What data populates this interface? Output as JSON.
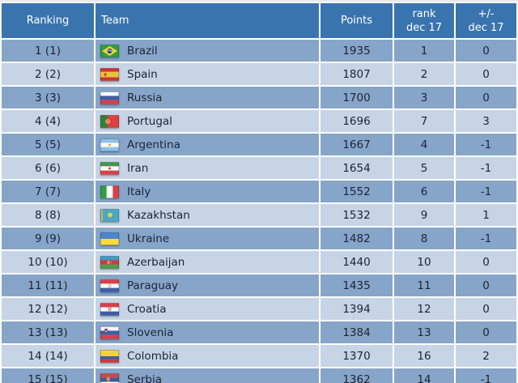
{
  "colors": {
    "header_bg": "#3a74ae",
    "row_dark": "#87a5c9",
    "row_light": "#c6d4e5",
    "header_text": "#ffffff",
    "body_text": "#1b2435",
    "grid": "#ffffff"
  },
  "table": {
    "columns": [
      {
        "key": "ranking",
        "lines": [
          "Ranking"
        ]
      },
      {
        "key": "team",
        "lines": [
          "Team"
        ]
      },
      {
        "key": "points",
        "lines": [
          "Points"
        ]
      },
      {
        "key": "rank_dec17",
        "lines": [
          "rank",
          "dec 17"
        ]
      },
      {
        "key": "change_dec17",
        "lines": [
          "+/-",
          "dec 17"
        ]
      }
    ],
    "rows": [
      {
        "ranking": "1 (1)",
        "team": "Brazil",
        "flag": "brazil",
        "points": "1935",
        "rank_dec17": "1",
        "change_dec17": "0"
      },
      {
        "ranking": "2 (2)",
        "team": "Spain",
        "flag": "spain",
        "points": "1807",
        "rank_dec17": "2",
        "change_dec17": "0"
      },
      {
        "ranking": "3 (3)",
        "team": "Russia",
        "flag": "russia",
        "points": "1700",
        "rank_dec17": "3",
        "change_dec17": "0"
      },
      {
        "ranking": "4 (4)",
        "team": "Portugal",
        "flag": "portugal",
        "points": "1696",
        "rank_dec17": "7",
        "change_dec17": "3"
      },
      {
        "ranking": "5 (5)",
        "team": "Argentina",
        "flag": "argentina",
        "points": "1667",
        "rank_dec17": "4",
        "change_dec17": "-1"
      },
      {
        "ranking": "6 (6)",
        "team": "Iran",
        "flag": "iran",
        "points": "1654",
        "rank_dec17": "5",
        "change_dec17": "-1"
      },
      {
        "ranking": "7 (7)",
        "team": "Italy",
        "flag": "italy",
        "points": "1552",
        "rank_dec17": "6",
        "change_dec17": "-1"
      },
      {
        "ranking": "8 (8)",
        "team": "Kazakhstan",
        "flag": "kazakhstan",
        "points": "1532",
        "rank_dec17": "9",
        "change_dec17": "1"
      },
      {
        "ranking": "9 (9)",
        "team": "Ukraine",
        "flag": "ukraine",
        "points": "1482",
        "rank_dec17": "8",
        "change_dec17": "-1"
      },
      {
        "ranking": "10 (10)",
        "team": "Azerbaijan",
        "flag": "azerbaijan",
        "points": "1440",
        "rank_dec17": "10",
        "change_dec17": "0"
      },
      {
        "ranking": "11 (11)",
        "team": "Paraguay",
        "flag": "paraguay",
        "points": "1435",
        "rank_dec17": "11",
        "change_dec17": "0"
      },
      {
        "ranking": "12 (12)",
        "team": "Croatia",
        "flag": "croatia",
        "points": "1394",
        "rank_dec17": "12",
        "change_dec17": "0"
      },
      {
        "ranking": "13 (13)",
        "team": "Slovenia",
        "flag": "slovenia",
        "points": "1384",
        "rank_dec17": "13",
        "change_dec17": "0"
      },
      {
        "ranking": "14 (14)",
        "team": "Colombia",
        "flag": "colombia",
        "points": "1370",
        "rank_dec17": "16",
        "change_dec17": "2"
      },
      {
        "ranking": "15 (15)",
        "team": "Serbia",
        "flag": "serbia",
        "points": "1362",
        "rank_dec17": "14",
        "change_dec17": "-1"
      }
    ]
  }
}
